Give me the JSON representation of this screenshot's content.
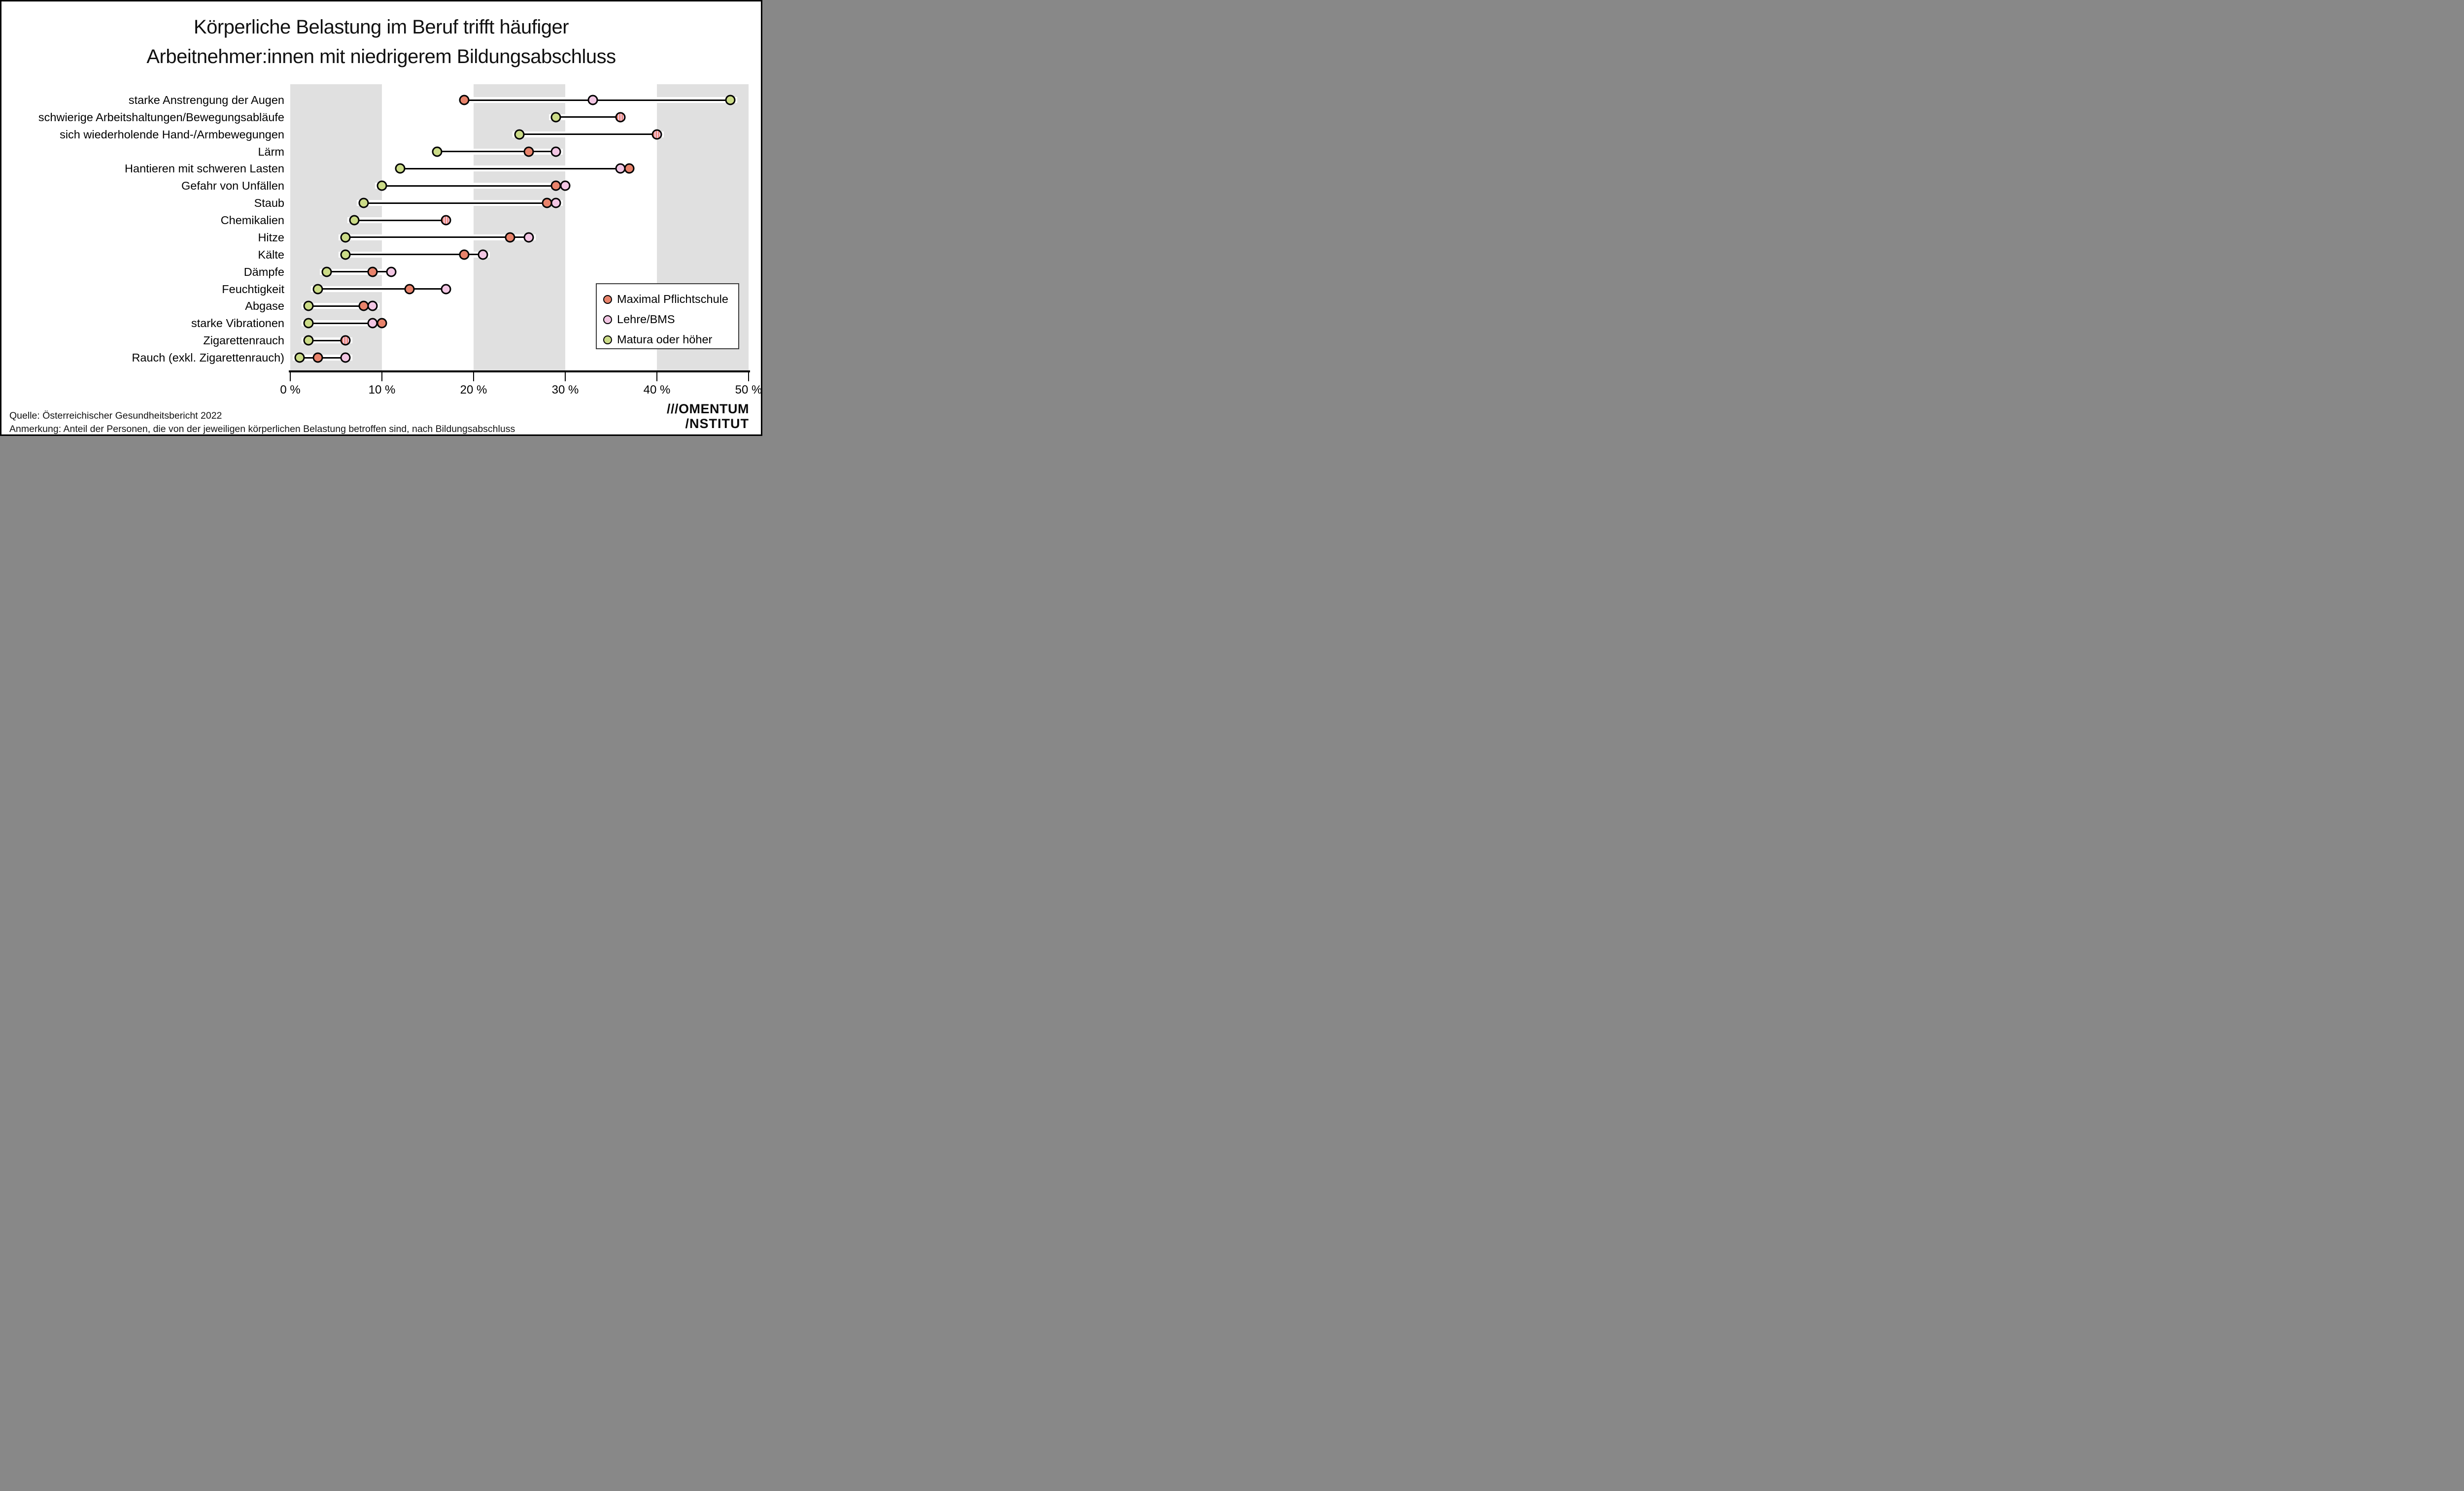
{
  "title": {
    "line1": "Körperliche Belastung im Beruf trifft häufiger",
    "line2": "Arbeitnehmer:innen mit niedrigerem Bildungsabschluss"
  },
  "chart_data": {
    "type": "dumbbell",
    "title": "Körperliche Belastung im Beruf trifft häufiger Arbeitnehmer:innen mit niedrigerem Bildungsabschluss",
    "categories": [
      "starke Anstrengung der Augen",
      "schwierige Arbeitshaltungen/Bewegungsabläufe",
      "sich wiederholende Hand-/Armbewegungen",
      "Lärm",
      "Hantieren mit schweren Lasten",
      "Gefahr von Unfällen",
      "Staub",
      "Chemikalien",
      "Hitze",
      "Kälte",
      "Dämpfe",
      "Feuchtigkeit",
      "Abgase",
      "starke Vibrationen",
      "Zigarettenrauch",
      "Rauch (exkl. Zigarettenrauch)"
    ],
    "series": [
      {
        "name": "Maximal Pflichtschule",
        "color": "#E8836B",
        "values": [
          19,
          36,
          40,
          26,
          37,
          29,
          28,
          17,
          24,
          19,
          9,
          13,
          8,
          10,
          6,
          3
        ]
      },
      {
        "name": "Lehre/BMS",
        "color": "#F2C6E3",
        "values": [
          33,
          36,
          40,
          29,
          36,
          30,
          29,
          17,
          26,
          21,
          11,
          17,
          9,
          9,
          6,
          6
        ]
      },
      {
        "name": "Matura oder höher",
        "color": "#CBDB87",
        "values": [
          48,
          29,
          25,
          16,
          12,
          10,
          8,
          7,
          6,
          6,
          4,
          3,
          2,
          2,
          2,
          1
        ]
      }
    ],
    "unit": "%",
    "xlim": [
      0,
      50
    ],
    "x_tick_values": [
      0,
      10,
      20,
      30,
      40,
      50
    ],
    "x_tick_labels": [
      "0 %",
      "10 %",
      "20 %",
      "30 %",
      "40 %",
      "50 %"
    ],
    "band_color": "#E0E0E0",
    "band_starts": "gray stripes at 0–10, 20–30, 40–50",
    "grid": "off",
    "legend_position": "middle-right"
  },
  "footer": {
    "source": "Quelle: Österreichischer Gesundheitsbericht 2022",
    "note": "Anmerkung: Anteil der Personen, die von der jeweiligen körperlichen Belastung betroffen sind, nach Bildungsabschluss"
  },
  "logo": {
    "line1": "///OMENTUM",
    "line2": "/NSTITUT"
  }
}
